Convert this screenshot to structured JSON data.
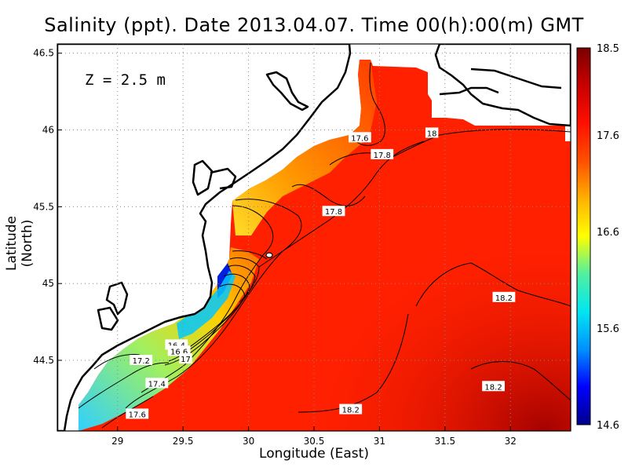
{
  "title": "Salinity (ppt). Date 2013.04.07. Time 00(h):00(m) GMT",
  "depth_label": "Z = 2.5 m",
  "chart_data": {
    "type": "heatmap",
    "title": "Salinity (ppt). Date 2013.04.07. Time 00(h):00(m) GMT",
    "xlabel": "Longitude (East)",
    "ylabel": "Latitude (North)",
    "xlim": [
      28.54,
      32.46
    ],
    "ylim": [
      44.04,
      46.56
    ],
    "x_ticks": [
      {
        "value": 29,
        "label": "29"
      },
      {
        "value": 29.5,
        "label": "29.5"
      },
      {
        "value": 30,
        "label": "30"
      },
      {
        "value": 30.5,
        "label": "30.5"
      },
      {
        "value": 31,
        "label": "31"
      },
      {
        "value": 31.5,
        "label": "31.5"
      },
      {
        "value": 32,
        "label": "32"
      }
    ],
    "y_ticks": [
      {
        "value": 44.5,
        "label": "44.5"
      },
      {
        "value": 45,
        "label": "45"
      },
      {
        "value": 45.5,
        "label": "45.5"
      },
      {
        "value": 46,
        "label": "46"
      },
      {
        "value": 46.5,
        "label": "46.5"
      }
    ],
    "grid": true,
    "colorbar": {
      "min": 14.6,
      "max": 18.5,
      "ticks": [
        {
          "value": 18.5,
          "label": "18.5"
        },
        {
          "value": 17.6,
          "label": "17.6"
        },
        {
          "value": 16.6,
          "label": "16.6"
        },
        {
          "value": 15.6,
          "label": "15.6"
        },
        {
          "value": 14.6,
          "label": "14.6"
        }
      ],
      "colors": [
        "#00008a",
        "#0000ff",
        "#0090ff",
        "#00e6f0",
        "#50f0a0",
        "#ffff00",
        "#ffb000",
        "#ff5000",
        "#ff1000",
        "#c80000",
        "#7a0000"
      ]
    },
    "contour_labels": [
      {
        "text": "17.6",
        "lon": 30.85,
        "lat": 45.95
      },
      {
        "text": "18",
        "lon": 31.4,
        "lat": 45.98
      },
      {
        "text": "17.8",
        "lon": 31.02,
        "lat": 45.84
      },
      {
        "text": "17.8",
        "lon": 30.65,
        "lat": 45.47
      },
      {
        "text": "18.2",
        "lon": 31.95,
        "lat": 44.91
      },
      {
        "text": "16.4",
        "lon": 29.45,
        "lat": 44.6
      },
      {
        "text": "16.6",
        "lon": 29.47,
        "lat": 44.56
      },
      {
        "text": "17",
        "lon": 29.52,
        "lat": 44.51
      },
      {
        "text": "17.2",
        "lon": 29.18,
        "lat": 44.5
      },
      {
        "text": "17.4",
        "lon": 29.3,
        "lat": 44.35
      },
      {
        "text": "17.6",
        "lon": 29.15,
        "lat": 44.15
      },
      {
        "text": "18.2",
        "lon": 30.78,
        "lat": 44.18
      },
      {
        "text": "18.2",
        "lon": 31.87,
        "lat": 44.33
      }
    ]
  }
}
